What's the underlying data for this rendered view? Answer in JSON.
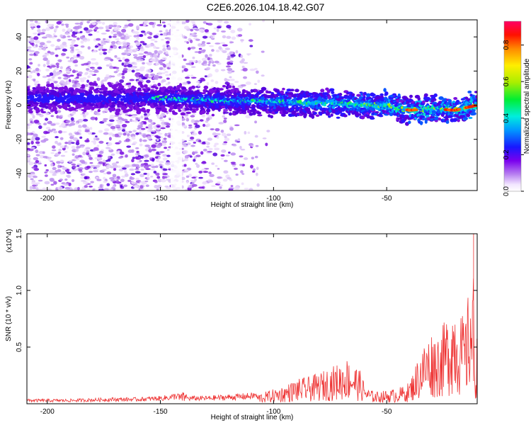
{
  "title": "C2E6.2026.104.18.42.G07",
  "chart_data": [
    {
      "type": "heatmap",
      "name": "spectrogram",
      "xlabel": "Height of straight line (km)",
      "ylabel": "Frequency (Hz)",
      "xlim": [
        -209,
        -10
      ],
      "ylim": [
        -50,
        50
      ],
      "x_ticks": [
        -200,
        -150,
        -100,
        -50
      ],
      "y_ticks": [
        -40,
        -20,
        0,
        20,
        40
      ],
      "x_tick_labels": [
        "-200",
        "-150",
        "-100",
        "-50"
      ],
      "y_tick_labels": [
        "-40",
        "-20",
        "0",
        "20",
        "40"
      ],
      "colorbar": {
        "label": "Normalized spectral amplitude",
        "range": [
          0.0,
          0.93
        ],
        "ticks": [
          0.0,
          0.2,
          0.4,
          0.6,
          0.8
        ],
        "tick_labels": [
          "0.0",
          "0.2",
          "0.4",
          "0.6",
          "0.8"
        ],
        "colormap": "rainbow (white-violet-blue-cyan-green-yellow-orange-red-magenta)"
      },
      "features": [
        {
          "description": "dominant frequency track",
          "x": [
            -209,
            -150,
            -125,
            -100,
            -75,
            -50,
            -40,
            -30,
            -20,
            -10
          ],
          "y": [
            4,
            4,
            3,
            2,
            1,
            0,
            -3,
            -2,
            -3,
            0
          ]
        }
      ],
      "noise_region_x": [
        -209,
        -110
      ],
      "grid": false
    },
    {
      "type": "line",
      "name": "snr",
      "xlabel": "Height of straight line (km)",
      "ylabel": "SNR (10 * v/v)",
      "y_multiplier": "(x10^4)",
      "xlim": [
        -209,
        -10
      ],
      "ylim": [
        0,
        1.5
      ],
      "x_ticks": [
        -200,
        -150,
        -100,
        -50
      ],
      "y_ticks": [
        0.5,
        1.0,
        1.5
      ],
      "x_tick_labels": [
        "-200",
        "-150",
        "-100",
        "-50"
      ],
      "y_tick_labels": [
        "0.5",
        "1.0",
        "1.5"
      ],
      "color": "#ee3333",
      "series": [
        {
          "x": [
            -209,
            -190,
            -170,
            -160,
            -150,
            -145,
            -142,
            -140,
            -138,
            -130,
            -120,
            -110,
            -105,
            -100,
            -95,
            -90,
            -85,
            -80,
            -75,
            -70,
            -68,
            -65,
            -62,
            -60,
            -58,
            -55,
            -50,
            -45,
            -42,
            -40,
            -38,
            -35,
            -32,
            -30,
            -28,
            -25,
            -22,
            -20,
            -18,
            -15,
            -13,
            -12,
            -11.5,
            -11,
            -10
          ],
          "y": [
            0.03,
            0.03,
            0.04,
            0.04,
            0.05,
            0.06,
            0.08,
            0.1,
            0.05,
            0.05,
            0.06,
            0.07,
            0.09,
            0.12,
            0.15,
            0.2,
            0.22,
            0.25,
            0.3,
            0.34,
            0.38,
            0.34,
            0.28,
            0.18,
            0.12,
            0.1,
            0.11,
            0.13,
            0.15,
            0.18,
            0.28,
            0.45,
            0.55,
            0.6,
            0.58,
            0.65,
            0.8,
            0.9,
            0.75,
            0.7,
            1.1,
            0.85,
            1.5,
            0.3,
            0.6
          ]
        }
      ],
      "grid": false
    }
  ]
}
